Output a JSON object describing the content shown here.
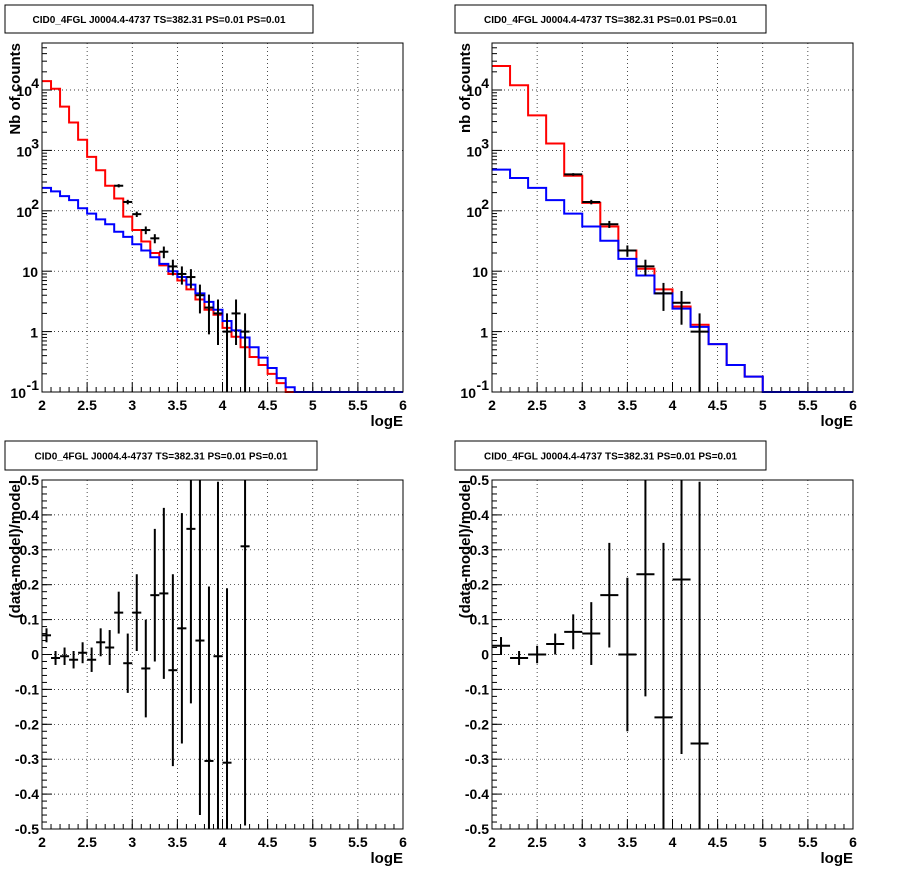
{
  "colors": {
    "data": "#000000",
    "total_model": "#ff0000",
    "source_model": "#0000ff",
    "grid": "#000000",
    "frame": "#000000"
  },
  "chart_data": [
    {
      "type": "step-histogram",
      "title": "CID0_4FGL J0004.4-4737 TS=382.31 PS=0.01 PS=0.01",
      "xlabel": "logE",
      "ylabel": "Nb of counts",
      "xlim": [
        2,
        6
      ],
      "ylim": [
        0.1,
        60000
      ],
      "yscale": "log",
      "grid": true,
      "xticks": [
        "2",
        "2.5",
        "3",
        "3.5",
        "4",
        "4.5",
        "5",
        "5.5",
        "6"
      ],
      "yticks": [
        {
          "value": 0.1,
          "label": "10",
          "sup": "-1"
        },
        {
          "value": 1,
          "label": "1",
          "sup": ""
        },
        {
          "value": 10,
          "label": "10",
          "sup": ""
        },
        {
          "value": 100,
          "label": "10",
          "sup": "2"
        },
        {
          "value": 1000,
          "label": "10",
          "sup": "3"
        },
        {
          "value": 10000,
          "label": "10",
          "sup": "4"
        }
      ],
      "bin_edges": [
        2.0,
        2.1,
        2.2,
        2.3,
        2.4,
        2.5,
        2.6,
        2.7,
        2.8,
        2.9,
        3.0,
        3.1,
        3.2,
        3.3,
        3.4,
        3.5,
        3.6,
        3.7,
        3.8,
        3.9,
        4.0,
        4.1,
        4.2,
        4.3,
        4.4,
        4.5,
        4.6,
        4.7,
        4.8,
        4.9,
        5.0,
        5.1,
        5.2,
        5.3,
        5.4,
        5.5,
        5.6,
        5.7,
        5.8,
        5.9,
        6.0
      ],
      "series": [
        {
          "name": "total model",
          "color": "#ff0000",
          "values": [
            14000,
            10500,
            5300,
            2900,
            1500,
            780,
            470,
            260,
            160,
            80,
            48,
            31,
            20,
            12.5,
            9,
            7,
            5,
            3.4,
            2.3,
            1.9,
            1.15,
            0.82,
            0.55,
            0.38,
            0.28,
            0.2,
            0.14,
            0.1,
            0.1,
            0.1,
            0.1,
            0.1,
            0.1,
            0.1,
            0.1,
            0.1,
            0.1,
            0.1,
            0.1,
            0.1
          ]
        },
        {
          "name": "source model",
          "color": "#0000ff",
          "values": [
            240,
            210,
            175,
            150,
            110,
            90,
            72,
            60,
            45,
            37,
            28,
            22,
            17,
            13.2,
            10,
            8,
            6,
            4.3,
            3.1,
            2.3,
            1.5,
            1.05,
            0.8,
            0.55,
            0.37,
            0.25,
            0.17,
            0.12,
            0.1,
            0.1,
            0.1,
            0.1,
            0.1,
            0.1,
            0.1,
            0.1,
            0.1,
            0.1,
            0.1,
            0.1
          ]
        }
      ],
      "data_points": [
        {
          "x": 2.85,
          "y": 260,
          "err": 16
        },
        {
          "x": 2.95,
          "y": 140,
          "err": 12
        },
        {
          "x": 3.05,
          "y": 88,
          "err": 9
        },
        {
          "x": 3.15,
          "y": 48,
          "err": 7
        },
        {
          "x": 3.25,
          "y": 35,
          "err": 6
        },
        {
          "x": 3.35,
          "y": 21,
          "err": 4.6
        },
        {
          "x": 3.45,
          "y": 12,
          "err": 3.5
        },
        {
          "x": 3.55,
          "y": 9,
          "err": 3
        },
        {
          "x": 3.65,
          "y": 8,
          "err": 2.8
        },
        {
          "x": 3.75,
          "y": 4,
          "err": 2
        },
        {
          "x": 3.85,
          "y": 2.5,
          "err": 1.6
        },
        {
          "x": 3.95,
          "y": 2,
          "err": 1.4
        },
        {
          "x": 4.05,
          "y": 1,
          "err": 1
        },
        {
          "x": 4.15,
          "y": 2,
          "err": 1.4
        },
        {
          "x": 4.25,
          "y": 1,
          "err": 1
        }
      ]
    },
    {
      "type": "step-histogram",
      "title": "CID0_4FGL J0004.4-4737 TS=382.31 PS=0.01 PS=0.01",
      "xlabel": "logE",
      "ylabel": "nb of counts",
      "xlim": [
        2,
        6
      ],
      "ylim": [
        0.1,
        60000
      ],
      "yscale": "log",
      "grid": true,
      "xticks": [
        "2",
        "2.5",
        "3",
        "3.5",
        "4",
        "4.5",
        "5",
        "5.5",
        "6"
      ],
      "yticks": [
        {
          "value": 0.1,
          "label": "10",
          "sup": "-1"
        },
        {
          "value": 1,
          "label": "1",
          "sup": ""
        },
        {
          "value": 10,
          "label": "10",
          "sup": ""
        },
        {
          "value": 100,
          "label": "10",
          "sup": "2"
        },
        {
          "value": 1000,
          "label": "10",
          "sup": "3"
        },
        {
          "value": 10000,
          "label": "10",
          "sup": "4"
        }
      ],
      "bin_edges": [
        2.0,
        2.2,
        2.4,
        2.6,
        2.8,
        3.0,
        3.2,
        3.4,
        3.6,
        3.8,
        4.0,
        4.2,
        4.4,
        4.6,
        4.8,
        5.0,
        5.2,
        5.4,
        5.6,
        5.8,
        6.0
      ],
      "series": [
        {
          "name": "total model",
          "color": "#ff0000",
          "values": [
            25000,
            12000,
            3800,
            1300,
            380,
            135,
            55,
            22,
            11,
            5,
            2.6,
            1.3,
            0.62,
            0.28,
            0.18,
            0.1,
            0.1,
            0.1,
            0.1,
            0.1
          ]
        },
        {
          "name": "source model",
          "color": "#0000ff",
          "values": [
            480,
            350,
            240,
            150,
            90,
            55,
            32,
            16,
            8.5,
            4.3,
            2.4,
            1.2,
            0.62,
            0.28,
            0.18,
            0.1,
            0.1,
            0.1,
            0.1,
            0.1
          ]
        }
      ],
      "data_points": [
        {
          "x": 2.9,
          "y": 400,
          "err": 20
        },
        {
          "x": 3.1,
          "y": 140,
          "err": 12
        },
        {
          "x": 3.3,
          "y": 60,
          "err": 8
        },
        {
          "x": 3.5,
          "y": 22,
          "err": 4.7
        },
        {
          "x": 3.7,
          "y": 12,
          "err": 3.5
        },
        {
          "x": 3.9,
          "y": 4.3,
          "err": 2.1
        },
        {
          "x": 4.1,
          "y": 3,
          "err": 1.7
        },
        {
          "x": 4.3,
          "y": 1,
          "err": 1
        }
      ]
    },
    {
      "type": "scatter-errorbars",
      "title": "CID0_4FGL J0004.4-4737 TS=382.31 PS=0.01 PS=0.01",
      "xlabel": "logE",
      "ylabel": "(data-model)/model",
      "xlim": [
        2,
        6
      ],
      "ylim": [
        -0.5,
        0.5
      ],
      "grid": true,
      "xticks": [
        "2",
        "2.5",
        "3",
        "3.5",
        "4",
        "4.5",
        "5",
        "5.5",
        "6"
      ],
      "yticks": [
        "-0.5",
        "-0.4",
        "-0.3",
        "-0.2",
        "-0.1",
        "0",
        "0.1",
        "0.2",
        "0.3",
        "0.4",
        "0.5"
      ],
      "x_halfwidth": 0.05,
      "points": [
        {
          "x": 2.05,
          "y": 0.055,
          "err": 0.02
        },
        {
          "x": 2.15,
          "y": -0.01,
          "err": 0.02
        },
        {
          "x": 2.25,
          "y": -0.005,
          "err": 0.025
        },
        {
          "x": 2.35,
          "y": -0.015,
          "err": 0.025
        },
        {
          "x": 2.45,
          "y": 0.005,
          "err": 0.03
        },
        {
          "x": 2.55,
          "y": -0.015,
          "err": 0.035
        },
        {
          "x": 2.65,
          "y": 0.035,
          "err": 0.04
        },
        {
          "x": 2.75,
          "y": 0.02,
          "err": 0.05
        },
        {
          "x": 2.85,
          "y": 0.12,
          "err": 0.06
        },
        {
          "x": 2.95,
          "y": -0.025,
          "err": 0.085
        },
        {
          "x": 3.05,
          "y": 0.12,
          "err": 0.11
        },
        {
          "x": 3.15,
          "y": -0.04,
          "err": 0.14
        },
        {
          "x": 3.25,
          "y": 0.17,
          "err": 0.19
        },
        {
          "x": 3.35,
          "y": 0.175,
          "err": 0.245
        },
        {
          "x": 3.45,
          "y": -0.045,
          "err": 0.275
        },
        {
          "x": 3.55,
          "y": 0.075,
          "err": 0.33
        },
        {
          "x": 3.65,
          "y": 0.36,
          "err": 0.5
        },
        {
          "x": 3.75,
          "y": 0.04,
          "err": 0.5
        },
        {
          "x": 3.85,
          "y": -0.305,
          "err": 0.5
        },
        {
          "x": 3.95,
          "y": -0.005,
          "err": 0.5
        },
        {
          "x": 4.05,
          "y": -0.31,
          "err": 0.5
        },
        {
          "x": 4.25,
          "y": 0.31,
          "err": 0.8
        }
      ]
    },
    {
      "type": "scatter-errorbars",
      "title": "CID0_4FGL J0004.4-4737 TS=382.31 PS=0.01 PS=0.01",
      "xlabel": "logE",
      "ylabel": "(data-model)/model",
      "xlim": [
        2,
        6
      ],
      "ylim": [
        -0.5,
        0.5
      ],
      "grid": true,
      "xticks": [
        "2",
        "2.5",
        "3",
        "3.5",
        "4",
        "4.5",
        "5",
        "5.5",
        "6"
      ],
      "yticks": [
        "-0.5",
        "-0.4",
        "-0.3",
        "-0.2",
        "-0.1",
        "0",
        "0.1",
        "0.2",
        "0.3",
        "0.4",
        "0.5"
      ],
      "x_halfwidth": 0.1,
      "points": [
        {
          "x": 2.1,
          "y": 0.025,
          "err": 0.025
        },
        {
          "x": 2.3,
          "y": -0.01,
          "err": 0.02
        },
        {
          "x": 2.5,
          "y": 0.0,
          "err": 0.025
        },
        {
          "x": 2.7,
          "y": 0.03,
          "err": 0.03
        },
        {
          "x": 2.9,
          "y": 0.065,
          "err": 0.05
        },
        {
          "x": 3.1,
          "y": 0.06,
          "err": 0.09
        },
        {
          "x": 3.3,
          "y": 0.17,
          "err": 0.15
        },
        {
          "x": 3.5,
          "y": 0.0,
          "err": 0.22
        },
        {
          "x": 3.7,
          "y": 0.23,
          "err": 0.35
        },
        {
          "x": 3.9,
          "y": -0.18,
          "err": 0.5
        },
        {
          "x": 4.1,
          "y": 0.215,
          "err": 0.5
        },
        {
          "x": 4.3,
          "y": -0.255,
          "err": 0.75
        }
      ]
    }
  ]
}
